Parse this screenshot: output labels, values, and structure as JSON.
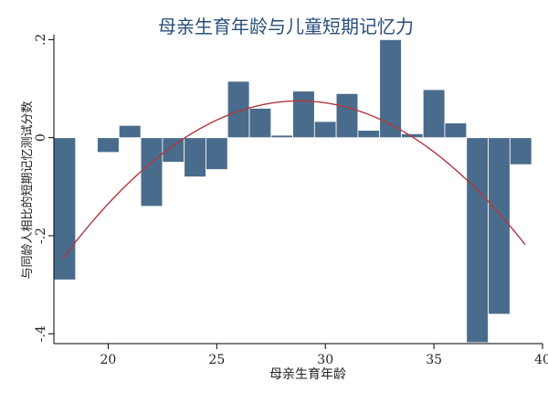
{
  "chart_data": {
    "type": "bar",
    "title": "母亲生育年龄与儿童短期记忆力",
    "xlabel": "母亲生育年龄",
    "ylabel": "与同龄人相比的短期记忆测试分数",
    "xlim": [
      17.5,
      40
    ],
    "ylim": [
      -0.42,
      0.21
    ],
    "xticks": [
      20,
      25,
      30,
      35,
      40
    ],
    "yticks": [
      -0.4,
      -0.2,
      0,
      0.2
    ],
    "ytick_labels": [
      "-.4",
      "-.2",
      "0",
      ".2"
    ],
    "grid": false,
    "bar_color": "#4a6c8c",
    "curve_color": "#b0383f",
    "bar_width": 1,
    "bars": [
      {
        "x": 18,
        "value": -0.29
      },
      {
        "x": 19,
        "value": 0.0
      },
      {
        "x": 20,
        "value": -0.03
      },
      {
        "x": 21,
        "value": 0.025
      },
      {
        "x": 22,
        "value": -0.14
      },
      {
        "x": 23,
        "value": -0.05
      },
      {
        "x": 24,
        "value": -0.08
      },
      {
        "x": 25,
        "value": -0.065
      },
      {
        "x": 26,
        "value": 0.115
      },
      {
        "x": 27,
        "value": 0.06
      },
      {
        "x": 28,
        "value": 0.005
      },
      {
        "x": 29,
        "value": 0.095
      },
      {
        "x": 30,
        "value": 0.033
      },
      {
        "x": 31,
        "value": 0.09
      },
      {
        "x": 32,
        "value": 0.015
      },
      {
        "x": 33,
        "value": 0.2
      },
      {
        "x": 34,
        "value": 0.008
      },
      {
        "x": 35,
        "value": 0.098
      },
      {
        "x": 36,
        "value": 0.03
      },
      {
        "x": 37,
        "value": -0.418
      },
      {
        "x": 38,
        "value": -0.36
      },
      {
        "x": 39,
        "value": -0.055
      }
    ],
    "fit_curve": {
      "type": "quadratic",
      "x_range": [
        17.9,
        39.2
      ],
      "peak_x": 28.8,
      "peak_y": 0.075,
      "curvature": -0.00271
    }
  }
}
